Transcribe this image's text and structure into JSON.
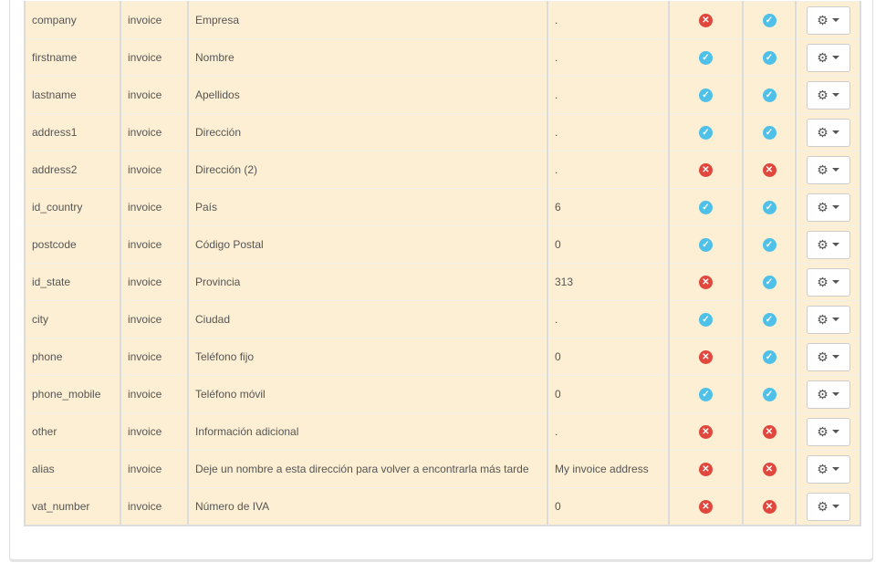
{
  "colors": {
    "row_bg": "#fdefd3",
    "ok": "#4fc0e8",
    "no": "#e0483e"
  },
  "rows": [
    {
      "field": "company",
      "type": "invoice",
      "label": "Empresa",
      "default": ".",
      "required": false,
      "visible": true
    },
    {
      "field": "firstname",
      "type": "invoice",
      "label": "Nombre",
      "default": ".",
      "required": true,
      "visible": true
    },
    {
      "field": "lastname",
      "type": "invoice",
      "label": "Apellidos",
      "default": ".",
      "required": true,
      "visible": true
    },
    {
      "field": "address1",
      "type": "invoice",
      "label": "Dirección",
      "default": ".",
      "required": true,
      "visible": true
    },
    {
      "field": "address2",
      "type": "invoice",
      "label": "Dirección (2)",
      "default": ".",
      "required": false,
      "visible": false
    },
    {
      "field": "id_country",
      "type": "invoice",
      "label": "País",
      "default": "6",
      "required": true,
      "visible": true
    },
    {
      "field": "postcode",
      "type": "invoice",
      "label": "Código Postal",
      "default": "0",
      "required": true,
      "visible": true
    },
    {
      "field": "id_state",
      "type": "invoice",
      "label": "Provincia",
      "default": "313",
      "required": false,
      "visible": true
    },
    {
      "field": "city",
      "type": "invoice",
      "label": "Ciudad",
      "default": ".",
      "required": true,
      "visible": true
    },
    {
      "field": "phone",
      "type": "invoice",
      "label": "Teléfono fijo",
      "default": "0",
      "required": false,
      "visible": true
    },
    {
      "field": "phone_mobile",
      "type": "invoice",
      "label": "Teléfono móvil",
      "default": "0",
      "required": true,
      "visible": true
    },
    {
      "field": "other",
      "type": "invoice",
      "label": "Información adicional",
      "default": ".",
      "required": false,
      "visible": false
    },
    {
      "field": "alias",
      "type": "invoice",
      "label": "Deje un nombre a esta dirección para volver a encontrarla más tarde",
      "default": "My invoice address",
      "required": false,
      "visible": false
    },
    {
      "field": "vat_number",
      "type": "invoice",
      "label": "Número de IVA",
      "default": "0",
      "required": false,
      "visible": false
    }
  ],
  "icons": {
    "ok": "check-circle-icon",
    "no": "times-circle-icon",
    "action": "gear-icon"
  }
}
